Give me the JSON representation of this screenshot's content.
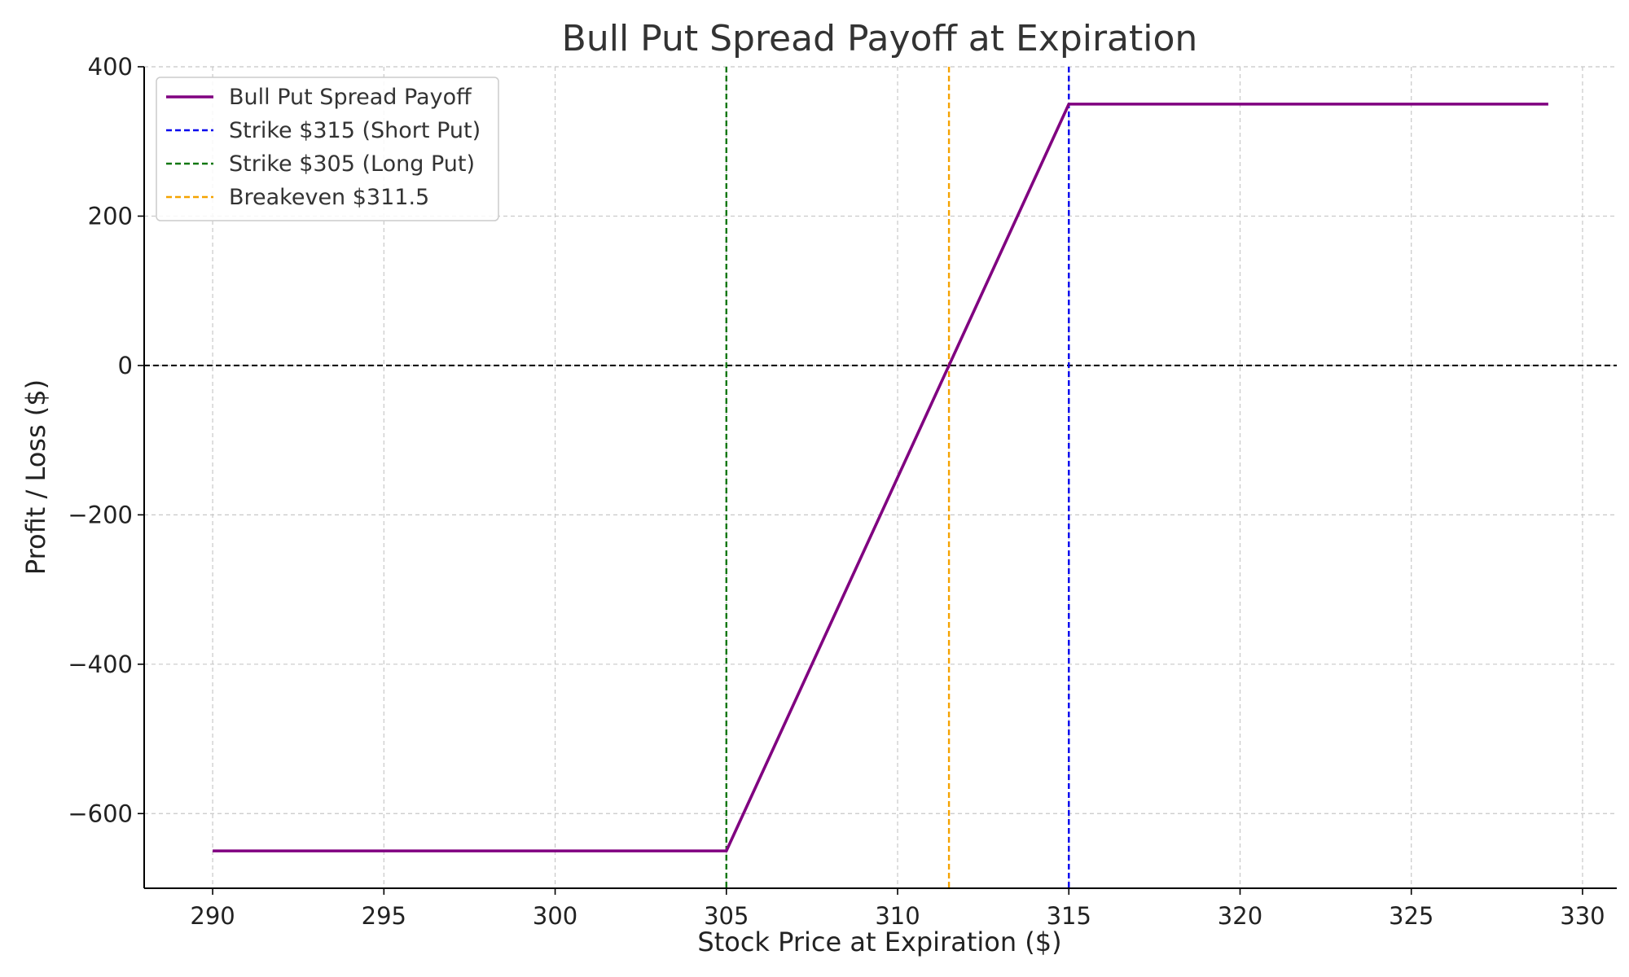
{
  "chart_data": {
    "type": "line",
    "title": "Bull Put Spread Payoff at Expiration",
    "xlabel": "Stock Price at Expiration ($)",
    "ylabel": "Profit / Loss ($)",
    "xlim": [
      288,
      331
    ],
    "ylim": [
      -700,
      400
    ],
    "x_ticks": [
      290,
      295,
      300,
      305,
      310,
      315,
      320,
      325,
      330
    ],
    "y_ticks": [
      -600,
      -400,
      -200,
      0,
      200,
      400
    ],
    "x_tick_labels": [
      "290",
      "295",
      "300",
      "305",
      "310",
      "315",
      "320",
      "325",
      "330"
    ],
    "y_tick_labels": [
      "−600",
      "−400",
      "−200",
      "0",
      "200",
      "400"
    ],
    "grid": true,
    "legend_position": "top-left",
    "zero_line": {
      "y": 0,
      "color": "#000000",
      "style": "dashed"
    },
    "series": [
      {
        "name": "Bull Put Spread Payoff",
        "color": "#800080",
        "style": "solid",
        "points": [
          [
            290,
            -650
          ],
          [
            305,
            -650
          ],
          [
            315,
            350
          ],
          [
            329,
            350
          ]
        ]
      }
    ],
    "vlines": [
      {
        "name": "Strike $315 (Short Put)",
        "x": 315,
        "color": "#0000ee",
        "style": "dashed"
      },
      {
        "name": "Strike $305 (Long Put)",
        "x": 305,
        "color": "#117711",
        "style": "dashed"
      },
      {
        "name": "Breakeven $311.5",
        "x": 311.5,
        "color": "#f5a300",
        "style": "dashed"
      }
    ]
  }
}
